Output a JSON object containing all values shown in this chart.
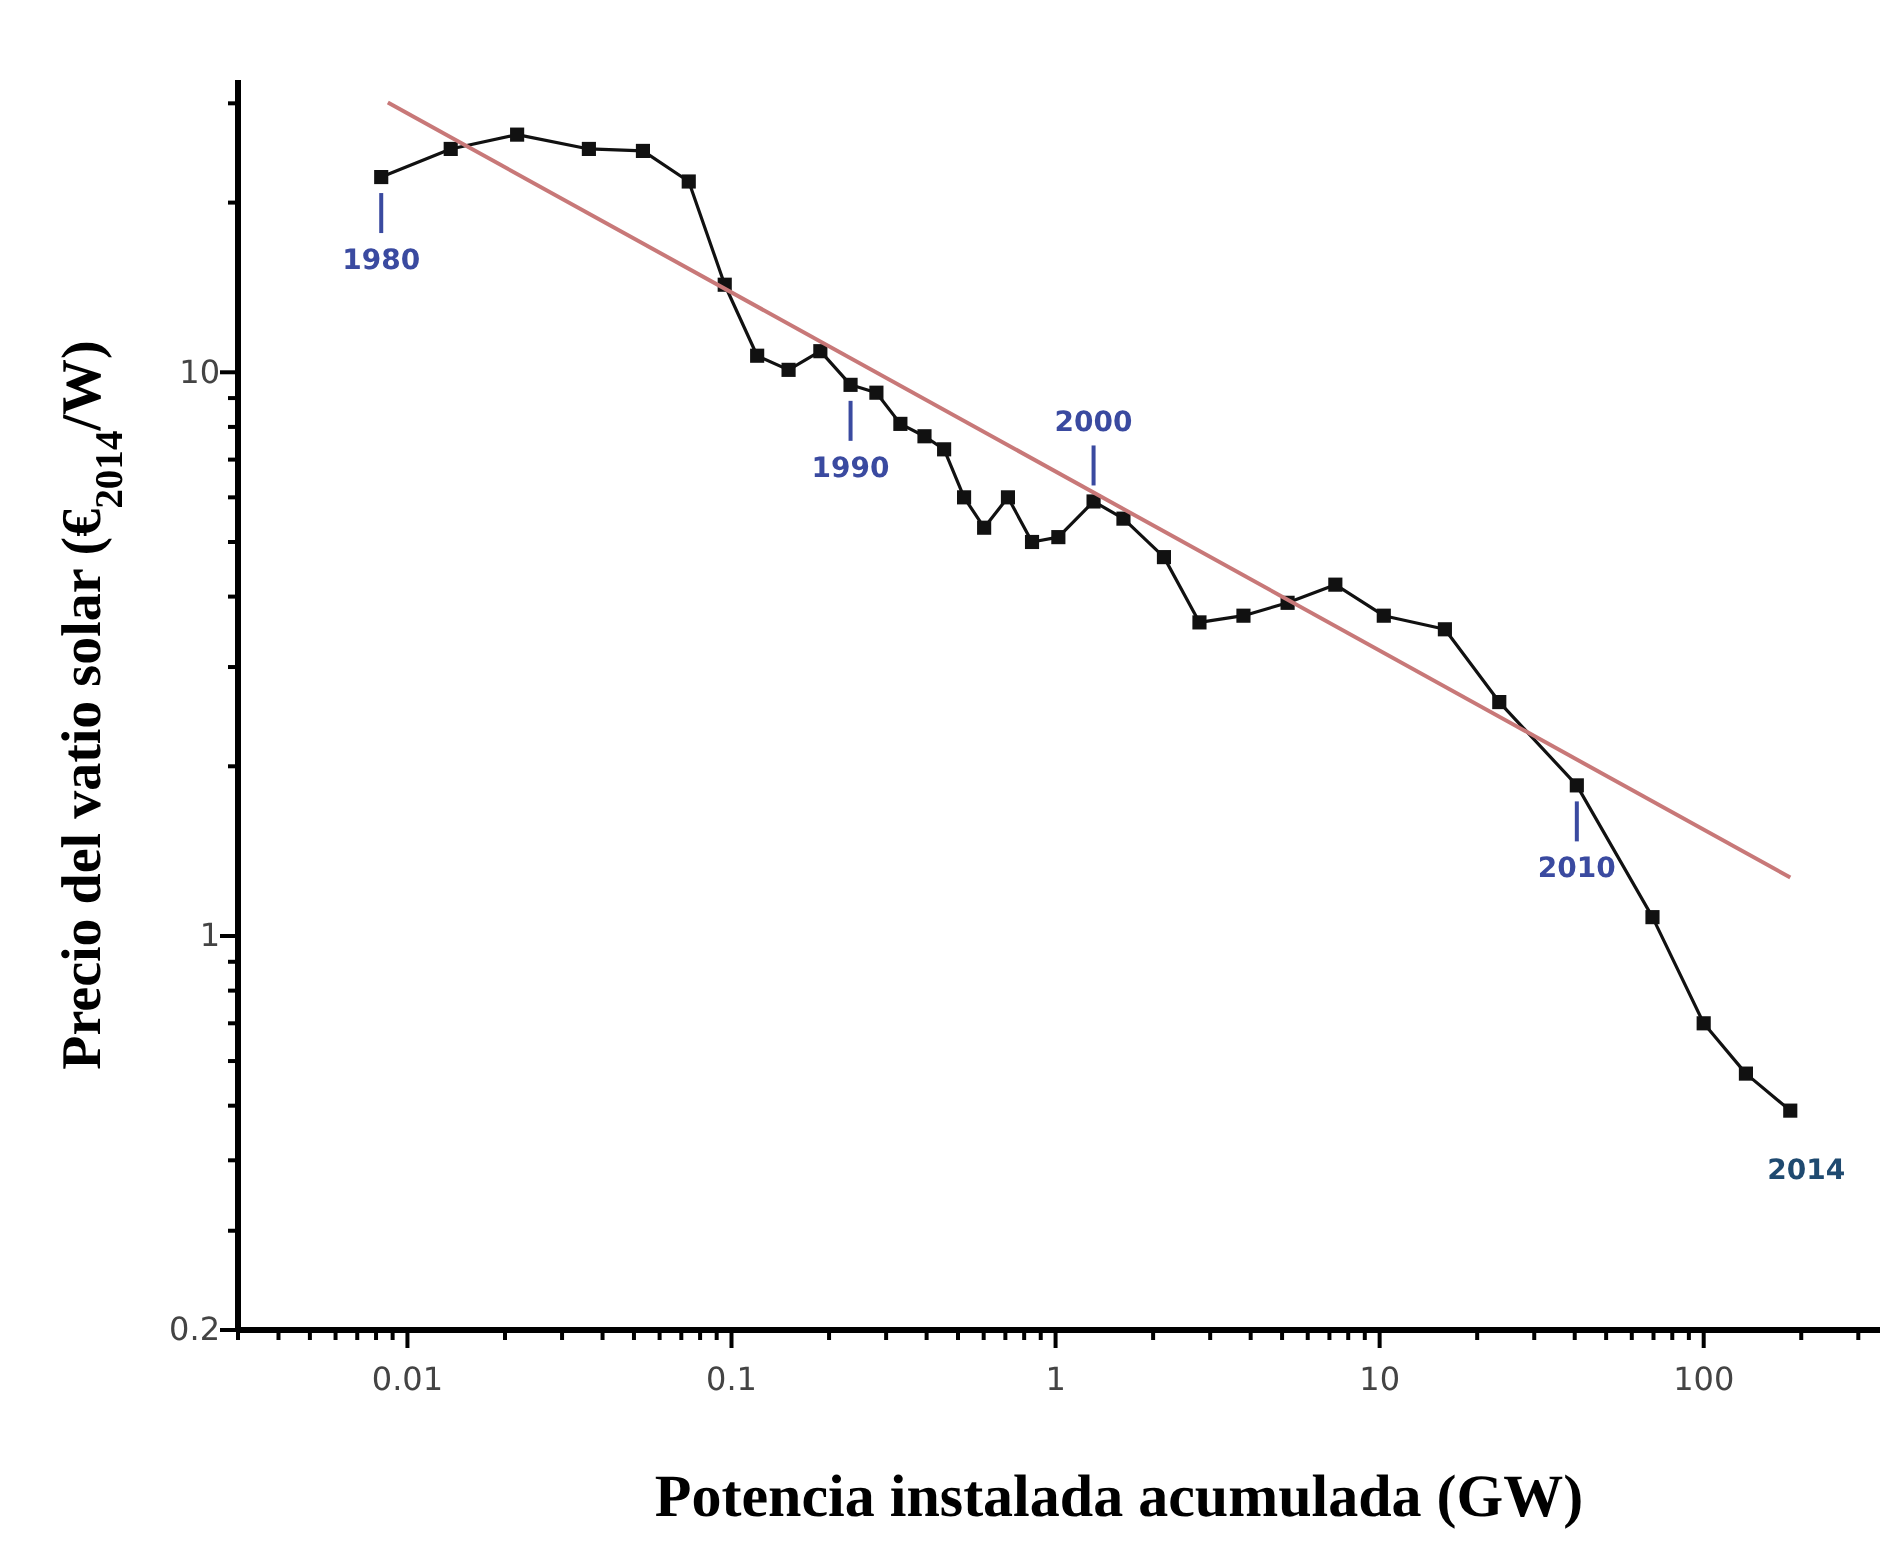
{
  "chart_data": {
    "type": "line",
    "xlabel": "Potencia instalada acumulada (GW)",
    "ylabel": "Precio del vatio solar (€$_{2014}$/W)",
    "log": "xy",
    "marker": "square",
    "line_style": "solid",
    "grid": false,
    "xlim": [
      0.003,
      350
    ],
    "ylim": [
      0.2,
      33
    ],
    "xticks": [
      {
        "value": 0.003,
        "label": null
      },
      {
        "value": 0.004,
        "label": null
      },
      {
        "value": 0.005,
        "label": null
      },
      {
        "value": 0.006,
        "label": null
      },
      {
        "value": 0.007,
        "label": null
      },
      {
        "value": 0.008,
        "label": null
      },
      {
        "value": 0.009,
        "label": null
      },
      {
        "value": 0.01,
        "label": "0.01"
      },
      {
        "value": 0.02,
        "label": null
      },
      {
        "value": 0.03,
        "label": null
      },
      {
        "value": 0.04,
        "label": null
      },
      {
        "value": 0.05,
        "label": null
      },
      {
        "value": 0.06,
        "label": null
      },
      {
        "value": 0.07,
        "label": null
      },
      {
        "value": 0.08,
        "label": null
      },
      {
        "value": 0.09,
        "label": null
      },
      {
        "value": 0.1,
        "label": "0.1"
      },
      {
        "value": 0.2,
        "label": null
      },
      {
        "value": 0.3,
        "label": null
      },
      {
        "value": 0.4,
        "label": null
      },
      {
        "value": 0.5,
        "label": null
      },
      {
        "value": 0.6,
        "label": null
      },
      {
        "value": 0.7,
        "label": null
      },
      {
        "value": 0.8,
        "label": null
      },
      {
        "value": 0.9,
        "label": null
      },
      {
        "value": 1,
        "label": "1"
      },
      {
        "value": 2,
        "label": null
      },
      {
        "value": 3,
        "label": null
      },
      {
        "value": 4,
        "label": null
      },
      {
        "value": 5,
        "label": null
      },
      {
        "value": 6,
        "label": null
      },
      {
        "value": 7,
        "label": null
      },
      {
        "value": 8,
        "label": null
      },
      {
        "value": 9,
        "label": null
      },
      {
        "value": 10,
        "label": "10"
      },
      {
        "value": 20,
        "label": null
      },
      {
        "value": 30,
        "label": null
      },
      {
        "value": 40,
        "label": null
      },
      {
        "value": 50,
        "label": null
      },
      {
        "value": 60,
        "label": null
      },
      {
        "value": 70,
        "label": null
      },
      {
        "value": 80,
        "label": null
      },
      {
        "value": 90,
        "label": null
      },
      {
        "value": 100,
        "label": "100"
      },
      {
        "value": 200,
        "label": null
      },
      {
        "value": 300,
        "label": null
      }
    ],
    "yticks": [
      {
        "value": 0.2,
        "label": "0.2"
      },
      {
        "value": 0.3,
        "label": null
      },
      {
        "value": 0.4,
        "label": null
      },
      {
        "value": 0.5,
        "label": null
      },
      {
        "value": 0.6,
        "label": null
      },
      {
        "value": 0.7,
        "label": null
      },
      {
        "value": 0.8,
        "label": null
      },
      {
        "value": 0.9,
        "label": null
      },
      {
        "value": 1,
        "label": "1"
      },
      {
        "value": 2,
        "label": null
      },
      {
        "value": 3,
        "label": null
      },
      {
        "value": 4,
        "label": null
      },
      {
        "value": 5,
        "label": null
      },
      {
        "value": 6,
        "label": null
      },
      {
        "value": 7,
        "label": null
      },
      {
        "value": 8,
        "label": null
      },
      {
        "value": 9,
        "label": null
      },
      {
        "value": 10,
        "label": "10"
      },
      {
        "value": 20,
        "label": null
      },
      {
        "value": 30,
        "label": null
      }
    ],
    "series": [
      {
        "color": "#111111",
        "x": [
          0.0083,
          0.0136,
          0.0218,
          0.0363,
          0.0533,
          0.0738,
          0.0953,
          0.12,
          0.15,
          0.188,
          0.233,
          0.28,
          0.332,
          0.394,
          0.453,
          0.522,
          0.602,
          0.713,
          0.846,
          1.02,
          1.31,
          1.62,
          2.16,
          2.78,
          3.8,
          5.2,
          7.3,
          10.3,
          15.9,
          23.4,
          40.6,
          69.5,
          100,
          135,
          185
        ],
        "values": [
          22.2,
          24.9,
          26.4,
          24.9,
          24.7,
          21.8,
          14.3,
          10.7,
          10.1,
          10.9,
          9.5,
          9.2,
          8.1,
          7.7,
          7.3,
          6.0,
          5.3,
          6.0,
          5.0,
          5.1,
          5.9,
          5.5,
          4.7,
          3.6,
          3.7,
          3.9,
          4.2,
          3.7,
          3.5,
          2.6,
          1.85,
          1.08,
          0.7,
          0.57,
          0.49
        ]
      },
      {
        "color": "#c87878",
        "marker": "none",
        "x": [
          0.0087,
          185
        ],
        "values": [
          30.1,
          1.27
        ]
      }
    ],
    "annotations": [
      {
        "text": "1980",
        "x": 0.0083,
        "y": 22.2
      },
      {
        "text": "1990",
        "x": 0.233,
        "y": 9.5
      },
      {
        "text": "2000",
        "x": 1.31,
        "y": 5.9
      },
      {
        "text": "2010",
        "x": 40.6,
        "y": 1.85
      },
      {
        "text": "2014",
        "x": 185,
        "y": 0.49
      }
    ]
  }
}
